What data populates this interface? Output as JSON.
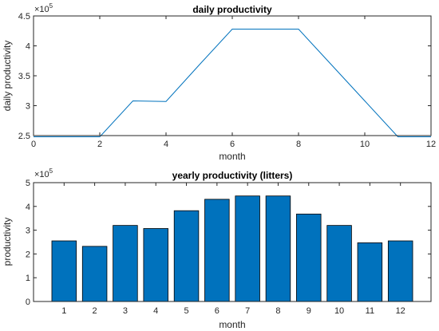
{
  "chart_data": [
    {
      "type": "line",
      "title": "daily productivity",
      "xlabel": "month",
      "ylabel": "daily productivity",
      "exponent_base": "×10",
      "exponent_power": "5",
      "x": [
        0,
        1,
        2,
        3,
        4,
        5,
        6,
        7,
        8,
        9,
        10,
        11,
        12
      ],
      "y": [
        2.48,
        2.48,
        2.48,
        3.08,
        3.07,
        3.68,
        4.28,
        4.28,
        4.28,
        3.68,
        3.08,
        2.48,
        2.48
      ],
      "xlim": [
        0,
        12
      ],
      "ylim": [
        2.5,
        4.5
      ],
      "xticks": [
        "0",
        "2",
        "4",
        "6",
        "8",
        "10",
        "12"
      ],
      "yticks": [
        "2.5",
        "3",
        "3.5",
        "4",
        "4.5"
      ],
      "color": "#0072bd",
      "grid": false
    },
    {
      "type": "bar",
      "title": "yearly productivity (litters)",
      "xlabel": "month",
      "ylabel": "productivity",
      "exponent_base": "×10",
      "exponent_power": "5",
      "categories": [
        "1",
        "2",
        "3",
        "4",
        "5",
        "6",
        "7",
        "8",
        "9",
        "10",
        "11",
        "12"
      ],
      "values": [
        2.55,
        2.32,
        3.2,
        3.07,
        3.82,
        4.3,
        4.44,
        4.44,
        3.68,
        3.2,
        2.47,
        2.55
      ],
      "ylim": [
        0,
        5
      ],
      "yticks": [
        "0",
        "1",
        "2",
        "3",
        "4",
        "5"
      ],
      "color": "#0072bd",
      "grid": false
    }
  ]
}
